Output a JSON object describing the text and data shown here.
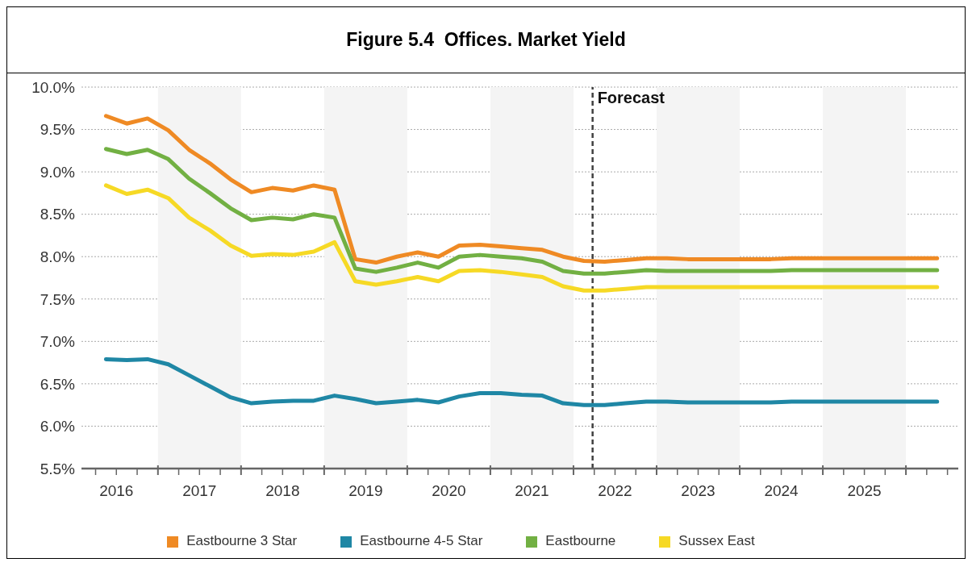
{
  "chart_data": {
    "type": "line",
    "title": "Figure 5.4  Offices. Market Yield",
    "x": [
      2016.375,
      2016.625,
      2016.875,
      2017.125,
      2017.375,
      2017.625,
      2017.875,
      2018.125,
      2018.375,
      2018.625,
      2018.875,
      2019.125,
      2019.375,
      2019.625,
      2019.875,
      2020.125,
      2020.375,
      2020.625,
      2020.875,
      2021.125,
      2021.375,
      2021.625,
      2021.875,
      2022.125,
      2022.375,
      2022.625,
      2022.875,
      2023.125,
      2023.375,
      2023.625,
      2023.875,
      2024.125,
      2024.375,
      2024.625,
      2024.875,
      2025.125,
      2025.375,
      2025.625,
      2025.875,
      2026.125,
      2026.375
    ],
    "series": [
      {
        "name": "Eastbourne 3 Star",
        "color": "#ef8a24",
        "values": [
          9.66,
          9.57,
          9.63,
          9.49,
          9.26,
          9.1,
          8.91,
          8.76,
          8.81,
          8.78,
          8.84,
          8.79,
          7.97,
          7.93,
          8.0,
          8.05,
          8.0,
          8.13,
          8.14,
          8.12,
          8.1,
          8.08,
          8.0,
          7.95,
          7.94,
          7.96,
          7.98,
          7.98,
          7.97,
          7.97,
          7.97,
          7.97,
          7.97,
          7.98,
          7.98,
          7.98,
          7.98,
          7.98,
          7.98,
          7.98,
          7.98
        ]
      },
      {
        "name": "Eastbourne 4-5 Star",
        "color": "#1f87a5",
        "values": [
          6.79,
          6.78,
          6.79,
          6.73,
          6.6,
          6.47,
          6.34,
          6.27,
          6.29,
          6.3,
          6.3,
          6.36,
          6.32,
          6.27,
          6.29,
          6.31,
          6.28,
          6.35,
          6.39,
          6.39,
          6.37,
          6.36,
          6.27,
          6.25,
          6.25,
          6.27,
          6.29,
          6.29,
          6.28,
          6.28,
          6.28,
          6.28,
          6.28,
          6.29,
          6.29,
          6.29,
          6.29,
          6.29,
          6.29,
          6.29,
          6.29
        ]
      },
      {
        "name": "Eastbourne",
        "color": "#72b043",
        "values": [
          9.27,
          9.21,
          9.26,
          9.15,
          8.92,
          8.75,
          8.57,
          8.43,
          8.46,
          8.44,
          8.5,
          8.46,
          7.86,
          7.82,
          7.87,
          7.93,
          7.87,
          8.0,
          8.02,
          8.0,
          7.98,
          7.94,
          7.83,
          7.8,
          7.8,
          7.82,
          7.84,
          7.83,
          7.83,
          7.83,
          7.83,
          7.83,
          7.83,
          7.84,
          7.84,
          7.84,
          7.84,
          7.84,
          7.84,
          7.84,
          7.84
        ]
      },
      {
        "name": "Sussex East",
        "color": "#f6d925",
        "values": [
          8.84,
          8.74,
          8.79,
          8.69,
          8.46,
          8.31,
          8.13,
          8.01,
          8.03,
          8.02,
          8.06,
          8.17,
          7.71,
          7.67,
          7.71,
          7.76,
          7.71,
          7.83,
          7.84,
          7.82,
          7.79,
          7.76,
          7.65,
          7.6,
          7.6,
          7.62,
          7.64,
          7.64,
          7.64,
          7.64,
          7.64,
          7.64,
          7.64,
          7.64,
          7.64,
          7.64,
          7.64,
          7.64,
          7.64,
          7.64,
          7.64
        ]
      }
    ],
    "xlim": [
      2016.08,
      2026.63
    ],
    "xticks": [
      {
        "value": 2016.25,
        "label": null
      },
      {
        "value": 2016.5,
        "label": "2016"
      },
      {
        "value": 2016.75,
        "label": null
      },
      {
        "value": 2017,
        "label": null
      },
      {
        "value": 2017.25,
        "label": null
      },
      {
        "value": 2017.5,
        "label": "2017"
      },
      {
        "value": 2017.75,
        "label": null
      },
      {
        "value": 2018,
        "label": null
      },
      {
        "value": 2018.25,
        "label": null
      },
      {
        "value": 2018.5,
        "label": "2018"
      },
      {
        "value": 2018.75,
        "label": null
      },
      {
        "value": 2019,
        "label": null
      },
      {
        "value": 2019.25,
        "label": null
      },
      {
        "value": 2019.5,
        "label": "2019"
      },
      {
        "value": 2019.75,
        "label": null
      },
      {
        "value": 2020,
        "label": null
      },
      {
        "value": 2020.25,
        "label": null
      },
      {
        "value": 2020.5,
        "label": "2020"
      },
      {
        "value": 2020.75,
        "label": null
      },
      {
        "value": 2021,
        "label": null
      },
      {
        "value": 2021.25,
        "label": null
      },
      {
        "value": 2021.5,
        "label": "2021"
      },
      {
        "value": 2021.75,
        "label": null
      },
      {
        "value": 2022,
        "label": null
      },
      {
        "value": 2022.25,
        "label": null
      },
      {
        "value": 2022.5,
        "label": "2022"
      },
      {
        "value": 2022.75,
        "label": null
      },
      {
        "value": 2023,
        "label": null
      },
      {
        "value": 2023.25,
        "label": null
      },
      {
        "value": 2023.5,
        "label": "2023"
      },
      {
        "value": 2023.75,
        "label": null
      },
      {
        "value": 2024,
        "label": null
      },
      {
        "value": 2024.25,
        "label": null
      },
      {
        "value": 2024.5,
        "label": "2024"
      },
      {
        "value": 2024.75,
        "label": null
      },
      {
        "value": 2025,
        "label": null
      },
      {
        "value": 2025.25,
        "label": null
      },
      {
        "value": 2025.5,
        "label": "2025"
      },
      {
        "value": 2025.75,
        "label": null
      },
      {
        "value": 2026,
        "label": null
      },
      {
        "value": 2026.25,
        "label": null
      },
      {
        "value": 2026.5,
        "label": null
      }
    ],
    "ylim": [
      5.5,
      10.0
    ],
    "yticks": [
      {
        "value": 5.5,
        "label": "5.5%"
      },
      {
        "value": 6.0,
        "label": "6.0%"
      },
      {
        "value": 6.5,
        "label": "6.5%"
      },
      {
        "value": 7.0,
        "label": "7.0%"
      },
      {
        "value": 7.5,
        "label": "7.5%"
      },
      {
        "value": 8.0,
        "label": "8.0%"
      },
      {
        "value": 8.5,
        "label": "8.5%"
      },
      {
        "value": 9.0,
        "label": "9.0%"
      },
      {
        "value": 9.5,
        "label": "9.5%"
      },
      {
        "value": 10.0,
        "label": "10.0%"
      }
    ],
    "grid": "y",
    "legend": "bottom",
    "marker": "none",
    "line_style": "solid",
    "ref_lines": [
      {
        "axis": "x",
        "value": 2022.23,
        "label": "Forecast",
        "color": "#404040",
        "line_style": "dashed"
      }
    ],
    "bands": [
      {
        "axis": "x",
        "from": 2017,
        "to": 2018,
        "label": null,
        "color": "#f4f4f4"
      },
      {
        "axis": "x",
        "from": 2019,
        "to": 2020,
        "label": null,
        "color": "#f4f4f4"
      },
      {
        "axis": "x",
        "from": 2021,
        "to": 2022,
        "label": null,
        "color": "#f4f4f4"
      },
      {
        "axis": "x",
        "from": 2023,
        "to": 2024,
        "label": null,
        "color": "#f4f4f4"
      },
      {
        "axis": "x",
        "from": 2025,
        "to": 2026,
        "label": null,
        "color": "#f4f4f4"
      }
    ]
  }
}
